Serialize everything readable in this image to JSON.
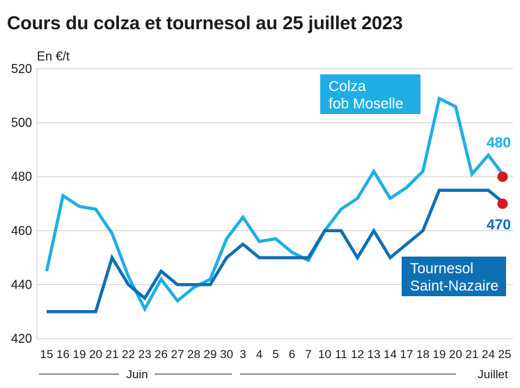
{
  "chart_data": {
    "type": "line",
    "title": "Cours du colza et tournesol au 25 juillet 2023",
    "ylabel": "En €/t",
    "ylim": [
      420,
      520
    ],
    "yticks": [
      420,
      440,
      460,
      480,
      500,
      520
    ],
    "categories": [
      "15",
      "16",
      "19",
      "20",
      "21",
      "22",
      "23",
      "26",
      "27",
      "28",
      "29",
      "30",
      "3",
      "4",
      "5",
      "6",
      "7",
      "10",
      "11",
      "12",
      "13",
      "14",
      "17",
      "18",
      "19",
      "20",
      "21",
      "24",
      "25"
    ],
    "months": [
      {
        "label": "Juin",
        "from": 0,
        "to": 11
      },
      {
        "label": "Juillet",
        "from": 12,
        "to": 28
      }
    ],
    "grid": "horizontal",
    "series": [
      {
        "name": "Colza fob Moselle",
        "label_lines": [
          "Colza",
          "fob Moselle"
        ],
        "color": "#1eaee3",
        "end_value_label": "480",
        "values": [
          445,
          473,
          469,
          468,
          459,
          443,
          431,
          442,
          434,
          439,
          442,
          457,
          465,
          456,
          457,
          452,
          449,
          460,
          468,
          472,
          482,
          472,
          476,
          482,
          509,
          506,
          481,
          488,
          480
        ]
      },
      {
        "name": "Tournesol Saint-Nazaire",
        "label_lines": [
          "Tournesol",
          "Saint-Nazaire"
        ],
        "color": "#0e6fb4",
        "end_value_label": "470",
        "values": [
          430,
          430,
          430,
          430,
          450,
          440,
          435,
          445,
          440,
          440,
          440,
          450,
          455,
          450,
          450,
          450,
          450,
          460,
          460,
          450,
          460,
          450,
          455,
          460,
          475,
          475,
          475,
          475,
          470
        ]
      }
    ],
    "end_marker_color": "#d71920"
  }
}
